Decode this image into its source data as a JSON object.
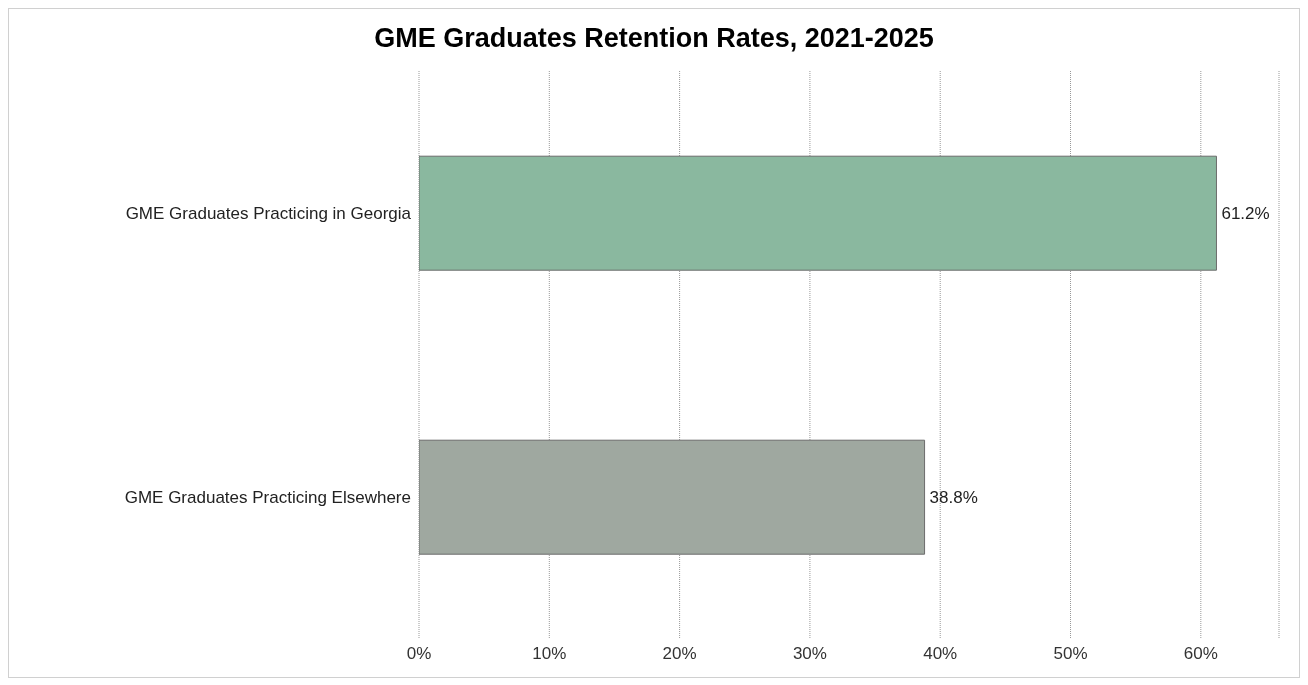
{
  "chart_data": {
    "type": "bar",
    "orientation": "horizontal",
    "title": "GME Graduates Retention Rates, 2021-2025",
    "categories": [
      "GME Graduates Practicing in Georgia",
      "GME Graduates Practicing Elsewhere"
    ],
    "values": [
      61.2,
      38.8
    ],
    "colors": [
      "#8ab89f",
      "#9fa8a0"
    ],
    "value_labels": [
      "61.2%",
      "38.8%"
    ],
    "xlim": [
      0,
      66
    ],
    "xticks": [
      {
        "value": 0,
        "label": "0%"
      },
      {
        "value": 10,
        "label": "10%"
      },
      {
        "value": 20,
        "label": "20%"
      },
      {
        "value": 30,
        "label": "30%"
      },
      {
        "value": 40,
        "label": "40%"
      },
      {
        "value": 50,
        "label": "50%"
      },
      {
        "value": 60,
        "label": "60%"
      }
    ],
    "grid": "x"
  }
}
